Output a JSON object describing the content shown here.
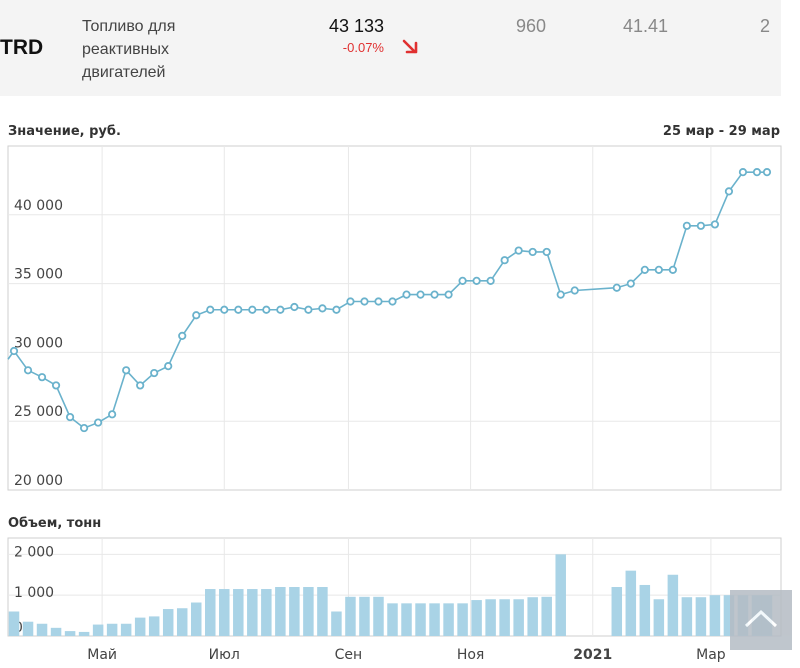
{
  "instrument": {
    "ticker": "TRD",
    "name": "Топливо для реактивных двигателей",
    "price": "43 133",
    "change": "-0.07%",
    "col1": "960",
    "col2": "41.41",
    "col3": "2",
    "trend_icon": "arrow-down-right-icon",
    "trend_color": "#e03030"
  },
  "chart_data": [
    {
      "type": "line",
      "title": "Значение, руб.",
      "date_range_label": "25 мар - 29 мар",
      "ylim": [
        20000,
        45000
      ],
      "yticks": [
        20000,
        25000,
        30000,
        35000,
        40000
      ],
      "ytick_labels": [
        "20 000",
        "25 000",
        "30 000",
        "35 000",
        "40 000"
      ],
      "x_labels": [
        "Май",
        "Июл",
        "Сен",
        "Ноя",
        "2021",
        "Мар"
      ],
      "x_label_positions": [
        "2020-05-01",
        "2020-07-01",
        "2020-09-01",
        "2020-11-01",
        "2021-01-01",
        "2021-03-01"
      ],
      "xlim": [
        "2020-03-15",
        "2021-04-05"
      ],
      "grid": true,
      "color": "#6ab2cc",
      "series": [
        {
          "x": [
            "2020-03-15",
            "2020-03-18",
            "2020-03-25",
            "2020-04-01",
            "2020-04-08",
            "2020-04-15",
            "2020-04-22",
            "2020-04-29",
            "2020-05-06",
            "2020-05-13",
            "2020-05-20",
            "2020-05-27",
            "2020-06-03",
            "2020-06-10",
            "2020-06-17",
            "2020-06-24",
            "2020-07-01",
            "2020-07-08",
            "2020-07-15",
            "2020-07-22",
            "2020-07-29",
            "2020-08-05",
            "2020-08-12",
            "2020-08-19",
            "2020-08-26",
            "2020-09-02",
            "2020-09-09",
            "2020-09-16",
            "2020-09-23",
            "2020-09-30",
            "2020-10-07",
            "2020-10-14",
            "2020-10-21",
            "2020-10-28",
            "2020-11-04",
            "2020-11-11",
            "2020-11-18",
            "2020-11-25",
            "2020-12-02",
            "2020-12-09",
            "2020-12-16",
            "2020-12-23",
            "2021-01-13",
            "2021-01-20",
            "2021-01-27",
            "2021-02-03",
            "2021-02-10",
            "2021-02-17",
            "2021-02-24",
            "2021-03-03",
            "2021-03-10",
            "2021-03-17",
            "2021-03-24",
            "2021-03-29"
          ],
          "y": [
            29500,
            30100,
            28700,
            28200,
            27600,
            25300,
            24500,
            24900,
            25500,
            28700,
            27600,
            28500,
            29000,
            31200,
            32700,
            33100,
            33100,
            33100,
            33100,
            33100,
            33100,
            33300,
            33100,
            33200,
            33100,
            33700,
            33700,
            33700,
            33700,
            34200,
            34200,
            34200,
            34200,
            35200,
            35200,
            35200,
            36700,
            37400,
            37300,
            37300,
            34200,
            34500,
            34700,
            35000,
            36000,
            36000,
            36000,
            39200,
            39200,
            39300,
            41700,
            43100,
            43100,
            43100
          ]
        }
      ]
    },
    {
      "type": "bar",
      "title": "Объем, тонн",
      "ylim": [
        0,
        2400
      ],
      "yticks": [
        0,
        1000,
        2000
      ],
      "ytick_labels": [
        "0",
        "1 000",
        "2 000"
      ],
      "grid": true,
      "color": "#a9d3e6",
      "series": [
        {
          "x": [
            "2020-03-18",
            "2020-03-25",
            "2020-04-01",
            "2020-04-08",
            "2020-04-15",
            "2020-04-22",
            "2020-04-29",
            "2020-05-06",
            "2020-05-13",
            "2020-05-20",
            "2020-05-27",
            "2020-06-03",
            "2020-06-10",
            "2020-06-17",
            "2020-06-24",
            "2020-07-01",
            "2020-07-08",
            "2020-07-15",
            "2020-07-22",
            "2020-07-29",
            "2020-08-05",
            "2020-08-12",
            "2020-08-19",
            "2020-08-26",
            "2020-09-02",
            "2020-09-09",
            "2020-09-16",
            "2020-09-23",
            "2020-09-30",
            "2020-10-07",
            "2020-10-14",
            "2020-10-21",
            "2020-10-28",
            "2020-11-04",
            "2020-11-11",
            "2020-11-18",
            "2020-11-25",
            "2020-12-02",
            "2020-12-09",
            "2020-12-16",
            "2021-01-13",
            "2021-01-20",
            "2021-01-27",
            "2021-02-03",
            "2021-02-10",
            "2021-02-17",
            "2021-02-24",
            "2021-03-03",
            "2021-03-10",
            "2021-03-17",
            "2021-03-24",
            "2021-03-29"
          ],
          "y": [
            600,
            350,
            300,
            200,
            120,
            100,
            280,
            300,
            300,
            450,
            480,
            660,
            680,
            820,
            1150,
            1150,
            1150,
            1150,
            1150,
            1200,
            1200,
            1200,
            1200,
            600,
            960,
            960,
            960,
            800,
            800,
            800,
            800,
            800,
            800,
            880,
            900,
            900,
            900,
            950,
            960,
            2000,
            1200,
            1600,
            1250,
            900,
            1500,
            950,
            950,
            1000,
            1000,
            1000,
            1000,
            1000
          ]
        }
      ]
    }
  ],
  "icons": {
    "scroll_top": "chevron-up-icon"
  }
}
